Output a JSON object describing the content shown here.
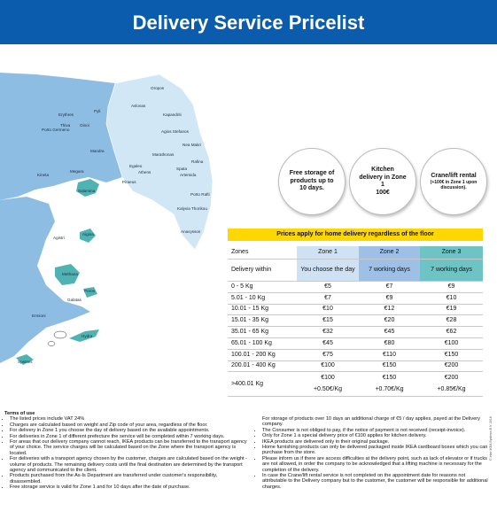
{
  "header": {
    "title": "Delivery Service Pricelist"
  },
  "map": {
    "labels": [
      "Oropos",
      "Avlonas",
      "Kapandriti",
      "Pyli",
      "Erythres",
      "Thiva",
      "Oinoi",
      "Porto Germeno",
      "Agios Stefanos",
      "Nea Makri",
      "Mandra",
      "Marathonas",
      "Rafina",
      "Egaleo",
      "Athens",
      "Spata",
      "Artemida",
      "Megara",
      "Kineta",
      "Piraeus",
      "Salamina",
      "Porto Rafti",
      "Kalyvia Thorikou",
      "Anavyssos",
      "Agistri",
      "Aigina",
      "Methana",
      "Poros",
      "Galatas",
      "Ermioni",
      "Hydra",
      "Spetses"
    ],
    "copyright": "© Inter IKEA Systems B.V. 2018"
  },
  "highlights": [
    {
      "text": "Free storage of products up to 10 days."
    },
    {
      "text": "Kitchen delivery in Zone 1",
      "price": "100€"
    },
    {
      "text": "Crane/lift rental",
      "note": "(+100€ in Zone 1 upon discussion)."
    }
  ],
  "table": {
    "banner": "Prices apply for home delivery regardless of the floor",
    "header": [
      "Zones",
      "Zone 1",
      "Zone 2",
      "Zone 3"
    ],
    "delivery": [
      "Delivery within",
      "You choose the day",
      "7 working days",
      "7 working days"
    ],
    "rows": [
      [
        "0 - 5 Kg",
        "€5",
        "€7",
        "€9"
      ],
      [
        "5.01 - 10 Kg",
        "€7",
        "€9",
        "€10"
      ],
      [
        "10.01 - 15 Kg",
        "€10",
        "€12",
        "€19"
      ],
      [
        "15.01 - 35 Kg",
        "€15",
        "€20",
        "€28"
      ],
      [
        "35.01 - 65 Kg",
        "€32",
        "€45",
        "€62"
      ],
      [
        "65.01 - 100 Kg",
        "€45",
        "€80",
        "€100"
      ],
      [
        "100.01 - 200 Kg",
        "€75",
        "€110",
        "€150"
      ],
      [
        "200.01 - 400 Kg",
        "€100",
        "€150",
        "€200"
      ],
      [
        ">400.01 Kg",
        "€100",
        "€150",
        "€200"
      ]
    ],
    "surcharges": [
      "+0.50€/Kg",
      "+0.70€/Kg",
      "+0.85€/Kg"
    ]
  },
  "terms": {
    "title": "Terms of use",
    "left": [
      "The listed prices include VAT 24%",
      "Charges are calculated based on weight and Zip code of your area, regardless of the floor.",
      "For delivery in Zone 1 you choose the day of delivery based on the available appointments.",
      "For deliveries in Zone 1 of different prefecture the service will be completed within 7 working days.",
      "For areas that our delivery company cannot reach, IKEA products can be transferred to the transport agency of your choice. The service charges will be calculated based on the Zone where the transport agency is located.",
      "For deliveries with a transport agency chosen by the customer, charges are calculated based on the weight - volume of products. The remaining delivery costs until the final destination are determined by the transport agency and communicated to the client.",
      "Products purchased from the As-Is Department are transferred under customer's responsibility, disassembled.",
      "Free storage service is valid for Zone 1 and for 10 days after the date of purchase."
    ],
    "right_intro": "For storage of products over 10 days an additional charge of €5 / day applies, payed at the Delivery company.",
    "right": [
      "The Consumer is not obliged to pay, if the notice of payment is not received (receipt-invoice).",
      "Only for Zone 1 a special delivery price of €100 applies for kitchen delivery.",
      "IKEA products are delivered only in their original package.",
      "Home furnishing products can only be delivered packaged inside IKEA cardboard boxes which you can purchase from the store.",
      "Please inform us if there are access difficulties at the delivery point, such as lack of elevator or if trucks are not allowed, in order the company to be acknowledged that a lifting machine is necessary for the completion of the delivery.",
      "In case the Crane/lift rental service is not completed on the appointment date for reasons not attributable to the Delivery company but to the customer, the customer will be responsible for additional charges."
    ]
  }
}
